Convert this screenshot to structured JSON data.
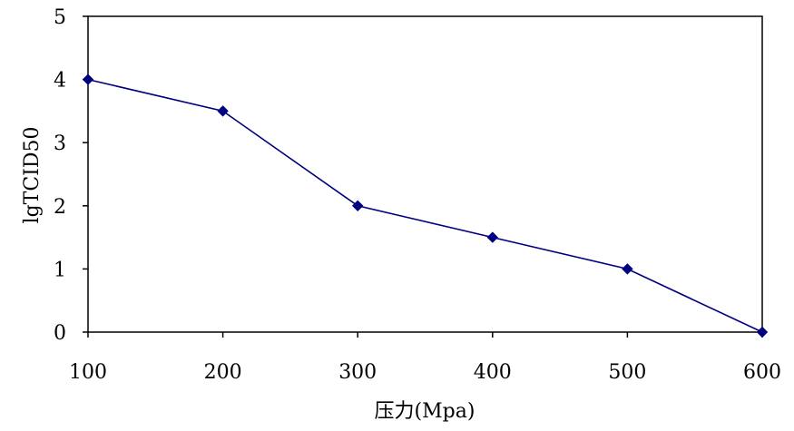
{
  "chart_data": {
    "type": "line",
    "title": "",
    "xlabel": "压力(Mpa)",
    "ylabel": "lgTCID50",
    "x": [
      100,
      200,
      300,
      400,
      500,
      600
    ],
    "xlim": [
      100,
      600
    ],
    "ylim": [
      0,
      5
    ],
    "x_ticks": [
      "100",
      "200",
      "300",
      "400",
      "500",
      "600"
    ],
    "y_ticks": [
      "0",
      "1",
      "2",
      "3",
      "4",
      "5"
    ],
    "grid": false,
    "legend": "none",
    "marker": "diamond",
    "series": [
      {
        "values": [
          4.0,
          3.5,
          2.0,
          1.5,
          1.0,
          0.0
        ],
        "color": "#000080"
      }
    ]
  }
}
